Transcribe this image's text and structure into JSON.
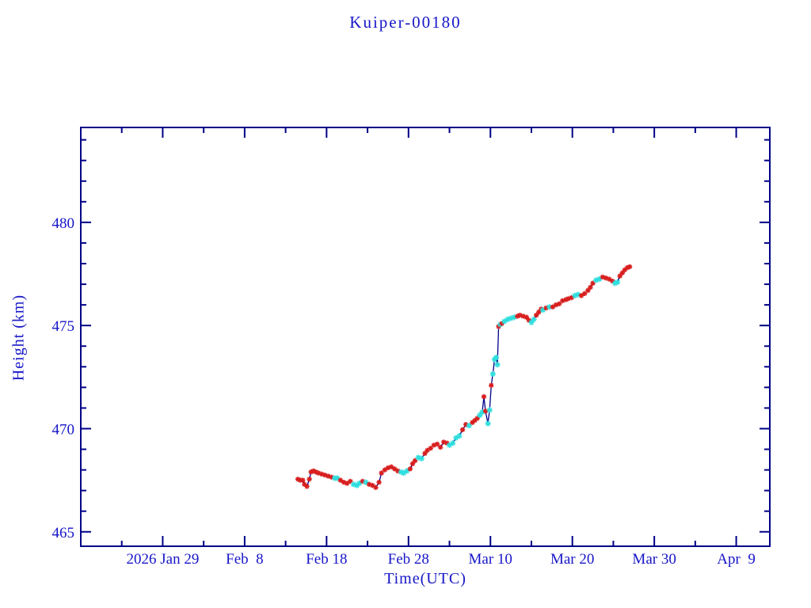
{
  "title": "Kuiper-00180",
  "chart_data": {
    "type": "line",
    "title": "Kuiper-00180",
    "xlabel": "Time(UTC)",
    "ylabel": "Height (km)",
    "x_axis": {
      "epoch": "2026 Jan 29",
      "major_tick_labels": [
        "2026 Jan 29",
        "Feb  8",
        "Feb 18",
        "Feb 28",
        "Mar 10",
        "Mar 20",
        "Mar 30",
        "Apr  9"
      ],
      "major_tick_days": [
        0,
        10,
        20,
        30,
        40,
        50,
        60,
        70
      ],
      "minor_tick_step_days": 5,
      "xlim_days": [
        -10,
        74.1
      ]
    },
    "y_axis": {
      "major_ticks": [
        465,
        470,
        475,
        480
      ],
      "major_tick_labels": [
        "465",
        "470",
        "475",
        "480"
      ],
      "minor_tick_step": 1,
      "ylim": [
        464.3,
        484.6
      ]
    },
    "grid": false,
    "legend": "none",
    "colors": {
      "text": "#1616c8",
      "frame": "#000087",
      "line": "#00008b",
      "marker_red": "#d81e1e",
      "marker_cyan": "#2fdede",
      "background": "#ffffff"
    },
    "series": [
      {
        "name": "height",
        "marker": "asterisk",
        "units": "km",
        "x_units": "days since 2026 Jan 29",
        "points": [
          [
            16.5,
            467.55,
            "r"
          ],
          [
            16.8,
            467.5,
            "r"
          ],
          [
            17.1,
            467.5,
            "r"
          ],
          [
            17.3,
            467.3,
            "r"
          ],
          [
            17.6,
            467.2,
            "r"
          ],
          [
            17.9,
            467.55,
            "r"
          ],
          [
            18.1,
            467.9,
            "r"
          ],
          [
            18.4,
            467.95,
            "r"
          ],
          [
            18.7,
            467.9,
            "r"
          ],
          [
            19.0,
            467.85,
            "r"
          ],
          [
            19.4,
            467.8,
            "r"
          ],
          [
            19.8,
            467.75,
            "r"
          ],
          [
            20.2,
            467.7,
            "r"
          ],
          [
            20.6,
            467.65,
            "r"
          ],
          [
            21.0,
            467.6,
            "c"
          ],
          [
            21.3,
            467.6,
            "c"
          ],
          [
            21.7,
            467.5,
            "r"
          ],
          [
            22.1,
            467.4,
            "r"
          ],
          [
            22.5,
            467.35,
            "r"
          ],
          [
            22.9,
            467.45,
            "r"
          ],
          [
            23.3,
            467.3,
            "c"
          ],
          [
            23.7,
            467.25,
            "c"
          ],
          [
            24.0,
            467.35,
            "c"
          ],
          [
            24.4,
            467.45,
            "r"
          ],
          [
            24.8,
            467.4,
            "c"
          ],
          [
            25.2,
            467.3,
            "r"
          ],
          [
            25.6,
            467.25,
            "r"
          ],
          [
            26.0,
            467.15,
            "r"
          ],
          [
            26.4,
            467.4,
            "r"
          ],
          [
            26.7,
            467.85,
            "r"
          ],
          [
            27.1,
            468.0,
            "r"
          ],
          [
            27.5,
            468.1,
            "r"
          ],
          [
            27.9,
            468.15,
            "r"
          ],
          [
            28.3,
            468.05,
            "r"
          ],
          [
            28.7,
            467.95,
            "r"
          ],
          [
            29.1,
            467.9,
            "c"
          ],
          [
            29.4,
            467.85,
            "c"
          ],
          [
            29.8,
            467.95,
            "c"
          ],
          [
            30.2,
            468.05,
            "r"
          ],
          [
            30.5,
            468.3,
            "r"
          ],
          [
            30.8,
            468.45,
            "r"
          ],
          [
            31.2,
            468.6,
            "c"
          ],
          [
            31.6,
            468.55,
            "c"
          ],
          [
            32.0,
            468.8,
            "r"
          ],
          [
            32.3,
            468.95,
            "r"
          ],
          [
            32.7,
            469.05,
            "r"
          ],
          [
            33.1,
            469.2,
            "r"
          ],
          [
            33.5,
            469.25,
            "r"
          ],
          [
            33.9,
            469.1,
            "r"
          ],
          [
            34.3,
            469.35,
            "r"
          ],
          [
            34.7,
            469.3,
            "r"
          ],
          [
            35.0,
            469.2,
            "c"
          ],
          [
            35.4,
            469.3,
            "c"
          ],
          [
            35.8,
            469.55,
            "c"
          ],
          [
            36.2,
            469.65,
            "c"
          ],
          [
            36.6,
            469.95,
            "r"
          ],
          [
            37.0,
            470.2,
            "r"
          ],
          [
            37.4,
            470.15,
            "c"
          ],
          [
            37.8,
            470.3,
            "r"
          ],
          [
            38.1,
            470.4,
            "r"
          ],
          [
            38.4,
            470.5,
            "r"
          ],
          [
            38.7,
            470.65,
            "c"
          ],
          [
            39.0,
            470.8,
            "c"
          ],
          [
            39.2,
            471.55,
            "r"
          ],
          [
            39.4,
            470.85,
            "r"
          ],
          [
            39.7,
            470.25,
            "c"
          ],
          [
            39.9,
            470.9,
            "c"
          ],
          [
            40.1,
            472.1,
            "r"
          ],
          [
            40.3,
            472.65,
            "c"
          ],
          [
            40.5,
            473.35,
            "c"
          ],
          [
            40.7,
            473.45,
            "c"
          ],
          [
            40.85,
            473.1,
            "c"
          ],
          [
            41.0,
            474.95,
            "r"
          ],
          [
            41.2,
            475.05,
            "c"
          ],
          [
            41.4,
            475.1,
            "r"
          ],
          [
            41.7,
            475.2,
            "c"
          ],
          [
            42.1,
            475.3,
            "c"
          ],
          [
            42.5,
            475.35,
            "c"
          ],
          [
            42.9,
            475.4,
            "c"
          ],
          [
            43.3,
            475.45,
            "r"
          ],
          [
            43.6,
            475.5,
            "r"
          ],
          [
            44.0,
            475.45,
            "r"
          ],
          [
            44.4,
            475.4,
            "r"
          ],
          [
            44.7,
            475.25,
            "r"
          ],
          [
            45.0,
            475.15,
            "c"
          ],
          [
            45.3,
            475.3,
            "c"
          ],
          [
            45.6,
            475.5,
            "r"
          ],
          [
            45.9,
            475.65,
            "r"
          ],
          [
            46.2,
            475.8,
            "r"
          ],
          [
            46.4,
            475.75,
            "c"
          ],
          [
            46.8,
            475.85,
            "r"
          ],
          [
            47.2,
            475.9,
            "c"
          ],
          [
            47.6,
            475.9,
            "r"
          ],
          [
            48.0,
            476.0,
            "r"
          ],
          [
            48.4,
            476.05,
            "r"
          ],
          [
            48.8,
            476.2,
            "r"
          ],
          [
            49.2,
            476.25,
            "r"
          ],
          [
            49.5,
            476.3,
            "r"
          ],
          [
            49.9,
            476.35,
            "r"
          ],
          [
            50.3,
            476.45,
            "c"
          ],
          [
            50.7,
            476.5,
            "c"
          ],
          [
            51.1,
            476.45,
            "r"
          ],
          [
            51.5,
            476.55,
            "r"
          ],
          [
            51.9,
            476.7,
            "r"
          ],
          [
            52.2,
            476.85,
            "r"
          ],
          [
            52.5,
            477.05,
            "r"
          ],
          [
            52.9,
            477.2,
            "c"
          ],
          [
            53.3,
            477.25,
            "c"
          ],
          [
            53.7,
            477.35,
            "r"
          ],
          [
            54.1,
            477.3,
            "r"
          ],
          [
            54.5,
            477.25,
            "r"
          ],
          [
            54.9,
            477.15,
            "r"
          ],
          [
            55.2,
            477.05,
            "c"
          ],
          [
            55.5,
            477.1,
            "c"
          ],
          [
            55.8,
            477.4,
            "r"
          ],
          [
            56.1,
            477.55,
            "r"
          ],
          [
            56.4,
            477.7,
            "r"
          ],
          [
            56.7,
            477.8,
            "r"
          ],
          [
            57.0,
            477.85,
            "r"
          ]
        ]
      }
    ]
  }
}
